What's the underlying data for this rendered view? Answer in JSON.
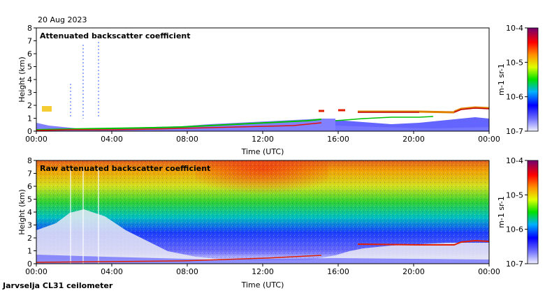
{
  "date": "20 Aug 2023",
  "station": "Jarvselja CL31 ceilometer",
  "chart_data": [
    {
      "type": "heatmap",
      "title": "Attenuated backscatter coefficient",
      "xlabel": "Time (UTC)",
      "ylabel": "Height (km)",
      "xticks": [
        "00:00",
        "04:00",
        "08:00",
        "12:00",
        "16:00",
        "20:00",
        "00:00"
      ],
      "yticks": [
        "0",
        "1",
        "2",
        "3",
        "4",
        "5",
        "6",
        "7",
        "8"
      ],
      "ylim": [
        0,
        8
      ],
      "colorbar": {
        "label": "m-1 sr-1",
        "ticks": [
          "10-7",
          "10-6",
          "10-5",
          "10-4"
        ],
        "scale": "log"
      },
      "features": {
        "boundary_layer_top_km": [
          0.15,
          0.2,
          0.25,
          0.3,
          0.4,
          0.55,
          0.7,
          0.8,
          1.4,
          1.5,
          1.6,
          1.8
        ],
        "cloud_layer_hours": [
          15.5,
          23.5
        ],
        "cloud_layer_km": [
          1.4,
          1.9
        ]
      }
    },
    {
      "type": "heatmap",
      "title": "Raw attenuated backscatter coefficient",
      "xlabel": "Time (UTC)",
      "ylabel": "Height (km)",
      "xticks": [
        "00:00",
        "04:00",
        "08:00",
        "12:00",
        "16:00",
        "20:00",
        "00:00"
      ],
      "yticks": [
        "0",
        "1",
        "2",
        "3",
        "4",
        "5",
        "6",
        "7",
        "8"
      ],
      "ylim": [
        0,
        8
      ],
      "colorbar": {
        "label": "m-1 sr-1",
        "ticks": [
          "10-7",
          "10-6",
          "10-5",
          "10-4"
        ],
        "scale": "log"
      }
    }
  ]
}
